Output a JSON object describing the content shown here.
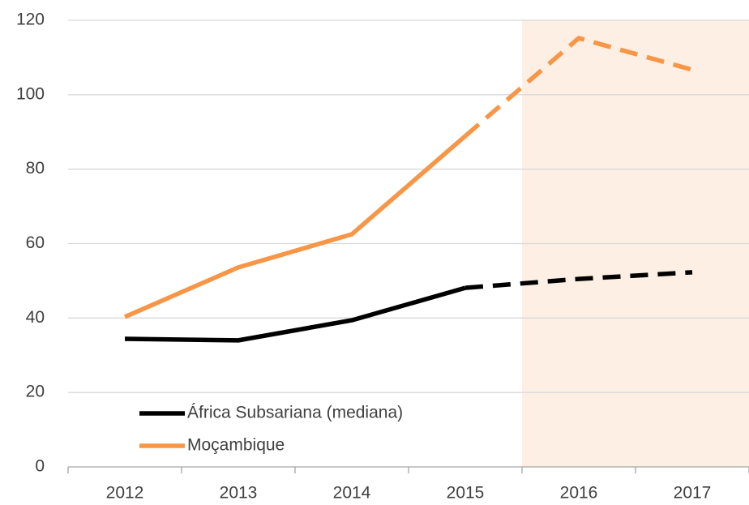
{
  "chart_data": {
    "type": "line",
    "categories": [
      "2012",
      "2013",
      "2014",
      "2015",
      "2016",
      "2017"
    ],
    "series": [
      {
        "name": "África Subsariana (mediana)",
        "color": "#000000",
        "values": [
          34.4,
          34.0,
          39.4,
          48.1,
          50.5,
          52.3
        ]
      },
      {
        "name": "Moçambique",
        "color": "#f79646",
        "values": [
          40.3,
          53.6,
          62.5,
          88.9,
          115.2,
          106.7
        ]
      }
    ],
    "ylim": [
      0,
      120
    ],
    "yticks": [
      0,
      20,
      40,
      60,
      80,
      100,
      120
    ],
    "grid": true,
    "dashed_from": "2015",
    "shaded_from": "2016",
    "shade_color": "#fdefe3",
    "legend": "lower left"
  }
}
